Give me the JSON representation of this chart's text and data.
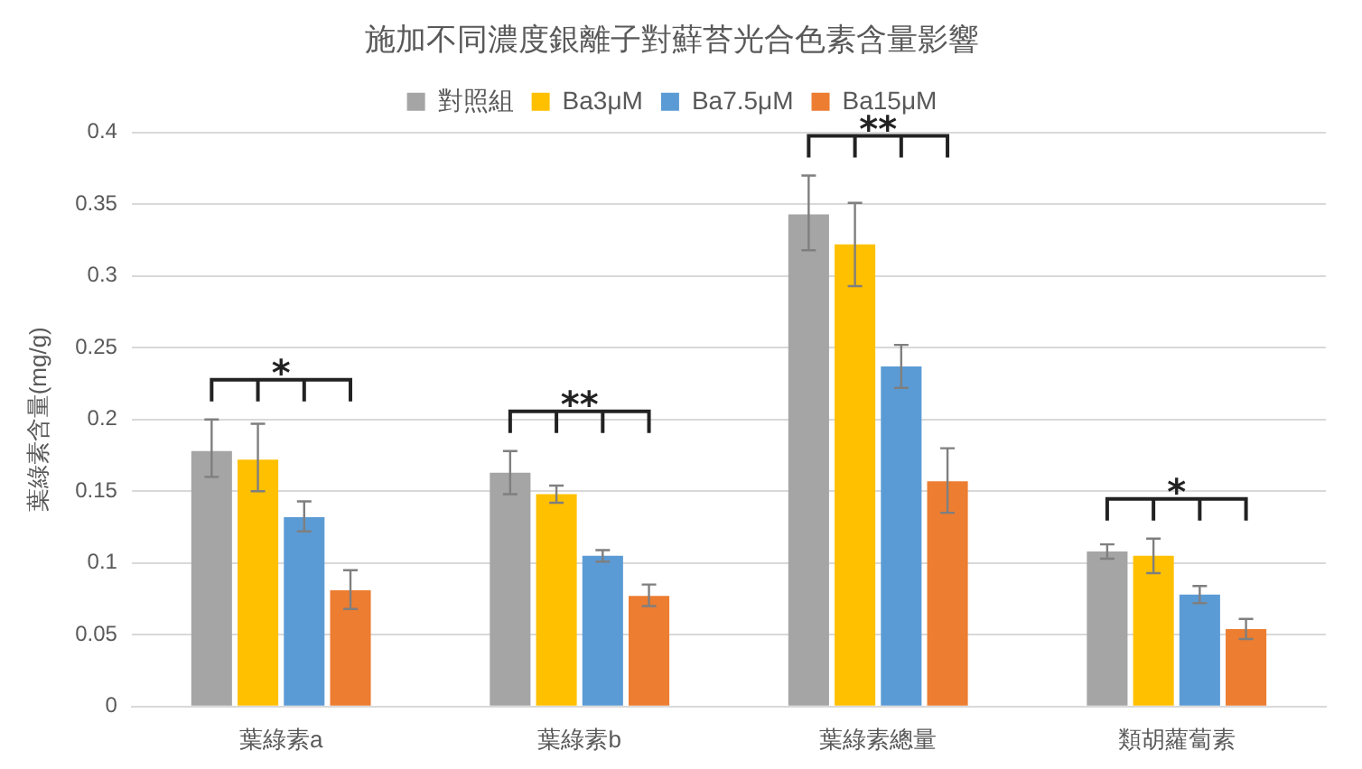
{
  "chart_data": {
    "type": "bar",
    "title": "施加不同濃度銀離子對蘚苔光合色素含量影響",
    "ylabel": "葉綠素含量(mg/g)",
    "categories": [
      "葉綠素a",
      "葉綠素b",
      "葉綠素總量",
      "類胡蘿蔔素"
    ],
    "series": [
      {
        "name": "對照組",
        "color": "#a5a5a5",
        "values": [
          0.178,
          0.163,
          0.343,
          0.108
        ],
        "errors": [
          [
            0.16,
            0.2
          ],
          [
            0.148,
            0.178
          ],
          [
            0.318,
            0.37
          ],
          [
            0.103,
            0.113
          ]
        ]
      },
      {
        "name": "Ba3μM",
        "color": "#ffc000",
        "values": [
          0.172,
          0.148,
          0.322,
          0.105
        ],
        "errors": [
          [
            0.15,
            0.197
          ],
          [
            0.142,
            0.154
          ],
          [
            0.293,
            0.351
          ],
          [
            0.093,
            0.117
          ]
        ]
      },
      {
        "name": "Ba7.5μM",
        "color": "#5b9bd5",
        "values": [
          0.132,
          0.105,
          0.237,
          0.078
        ],
        "errors": [
          [
            0.122,
            0.143
          ],
          [
            0.101,
            0.109
          ],
          [
            0.222,
            0.252
          ],
          [
            0.072,
            0.084
          ]
        ]
      },
      {
        "name": "Ba15μM",
        "color": "#ed7d31",
        "values": [
          0.081,
          0.077,
          0.157,
          0.054
        ],
        "errors": [
          [
            0.068,
            0.095
          ],
          [
            0.07,
            0.085
          ],
          [
            0.135,
            0.18
          ],
          [
            0.047,
            0.061
          ]
        ]
      }
    ],
    "annotations": [
      "*",
      "**",
      "**",
      "*"
    ],
    "ylim": [
      0,
      0.4
    ],
    "yticks": [
      0,
      0.05,
      0.1,
      0.15,
      0.2,
      0.25,
      0.3,
      0.35,
      0.4
    ],
    "grid": "y",
    "legend": "top"
  }
}
